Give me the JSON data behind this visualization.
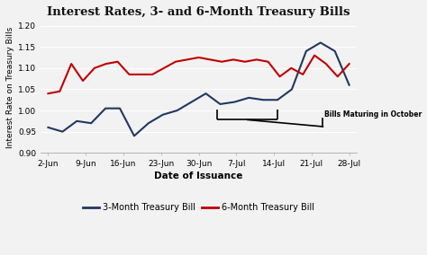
{
  "title": "Interest Rates, 3- and 6-Month Treasury Bills",
  "xlabel": "Date of Issuance",
  "ylabel": "Interest Rate on Treasury Bills",
  "x_labels": [
    "2-Jun",
    "9-Jun",
    "16-Jun",
    "23-Jun",
    "30-Jun",
    "7-Jul",
    "14-Jul",
    "21-Jul",
    "28-Jul"
  ],
  "ylim": [
    0.9,
    1.21
  ],
  "yticks": [
    0.9,
    0.95,
    1.0,
    1.05,
    1.1,
    1.15,
    1.2
  ],
  "three_month": [
    0.96,
    0.95,
    0.975,
    0.97,
    1.005,
    1.005,
    0.94,
    0.97,
    0.99,
    1.0,
    1.02,
    1.04,
    1.015,
    1.02,
    1.03,
    1.025,
    1.025,
    1.05,
    1.14,
    1.16,
    1.14,
    1.06
  ],
  "six_month": [
    1.04,
    1.045,
    1.11,
    1.07,
    1.1,
    1.11,
    1.115,
    1.085,
    1.085,
    1.085,
    1.1,
    1.115,
    1.12,
    1.125,
    1.12,
    1.115,
    1.12,
    1.115,
    1.12,
    1.115,
    1.08,
    1.1,
    1.085,
    1.13,
    1.11,
    1.08,
    1.11
  ],
  "color_3m": "#1f3864",
  "color_6m": "#c00000",
  "annotation_text": "Bills Maturing in October",
  "legend_3m": "3-Month Treasury Bill",
  "legend_6m": "6-Month Treasury Bill",
  "bg_color": "#f2f2f2",
  "plot_bg_color": "#f2f2f2",
  "grid_color": "#ffffff"
}
